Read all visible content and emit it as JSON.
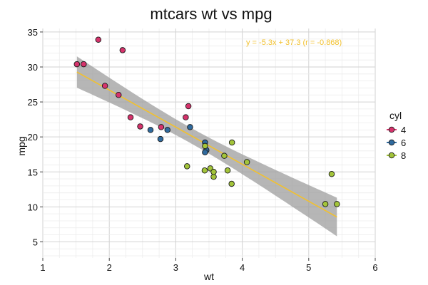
{
  "chart_data": {
    "type": "scatter",
    "title": "mtcars wt vs mpg",
    "xlabel": "wt",
    "ylabel": "mpg",
    "xlim": [
      1,
      6
    ],
    "ylim": [
      2.7,
      35.5
    ],
    "xticks": [
      1,
      2,
      3,
      4,
      5,
      6
    ],
    "yticks": [
      5,
      10,
      15,
      20,
      25,
      30,
      35
    ],
    "grid": true,
    "legend": {
      "title": "cyl",
      "position": "right"
    },
    "series": [
      {
        "name": "4",
        "color": "#d6336c",
        "points": [
          [
            2.32,
            22.8
          ],
          [
            3.19,
            24.4
          ],
          [
            3.15,
            22.8
          ],
          [
            2.2,
            32.4
          ],
          [
            1.615,
            30.4
          ],
          [
            1.835,
            33.9
          ],
          [
            2.465,
            21.5
          ],
          [
            1.935,
            27.3
          ],
          [
            2.14,
            26.0
          ],
          [
            1.513,
            30.4
          ],
          [
            2.78,
            21.4
          ]
        ]
      },
      {
        "name": "6",
        "color": "#2f6a9e",
        "points": [
          [
            2.62,
            21.0
          ],
          [
            2.875,
            21.0
          ],
          [
            3.215,
            21.4
          ],
          [
            3.46,
            18.1
          ],
          [
            3.44,
            19.2
          ],
          [
            3.44,
            17.8
          ],
          [
            2.77,
            19.7
          ]
        ]
      },
      {
        "name": "8",
        "color": "#a3c43a",
        "points": [
          [
            3.44,
            18.7
          ],
          [
            3.57,
            14.3
          ],
          [
            4.07,
            16.4
          ],
          [
            3.73,
            17.3
          ],
          [
            3.78,
            15.2
          ],
          [
            5.25,
            10.4
          ],
          [
            5.424,
            10.4
          ],
          [
            5.345,
            14.7
          ],
          [
            3.52,
            15.5
          ],
          [
            3.435,
            15.2
          ],
          [
            3.84,
            13.3
          ],
          [
            3.845,
            19.2
          ],
          [
            3.17,
            15.8
          ],
          [
            3.57,
            15.0
          ]
        ]
      }
    ],
    "fit": {
      "slope": -5.3,
      "intercept": 37.3,
      "x_range": [
        1.513,
        5.424
      ],
      "color": "#f2c12e",
      "band_color": "#9e9e9e",
      "equation_label": "y = -5.3x + 37.3 (r = -0.868)"
    }
  }
}
